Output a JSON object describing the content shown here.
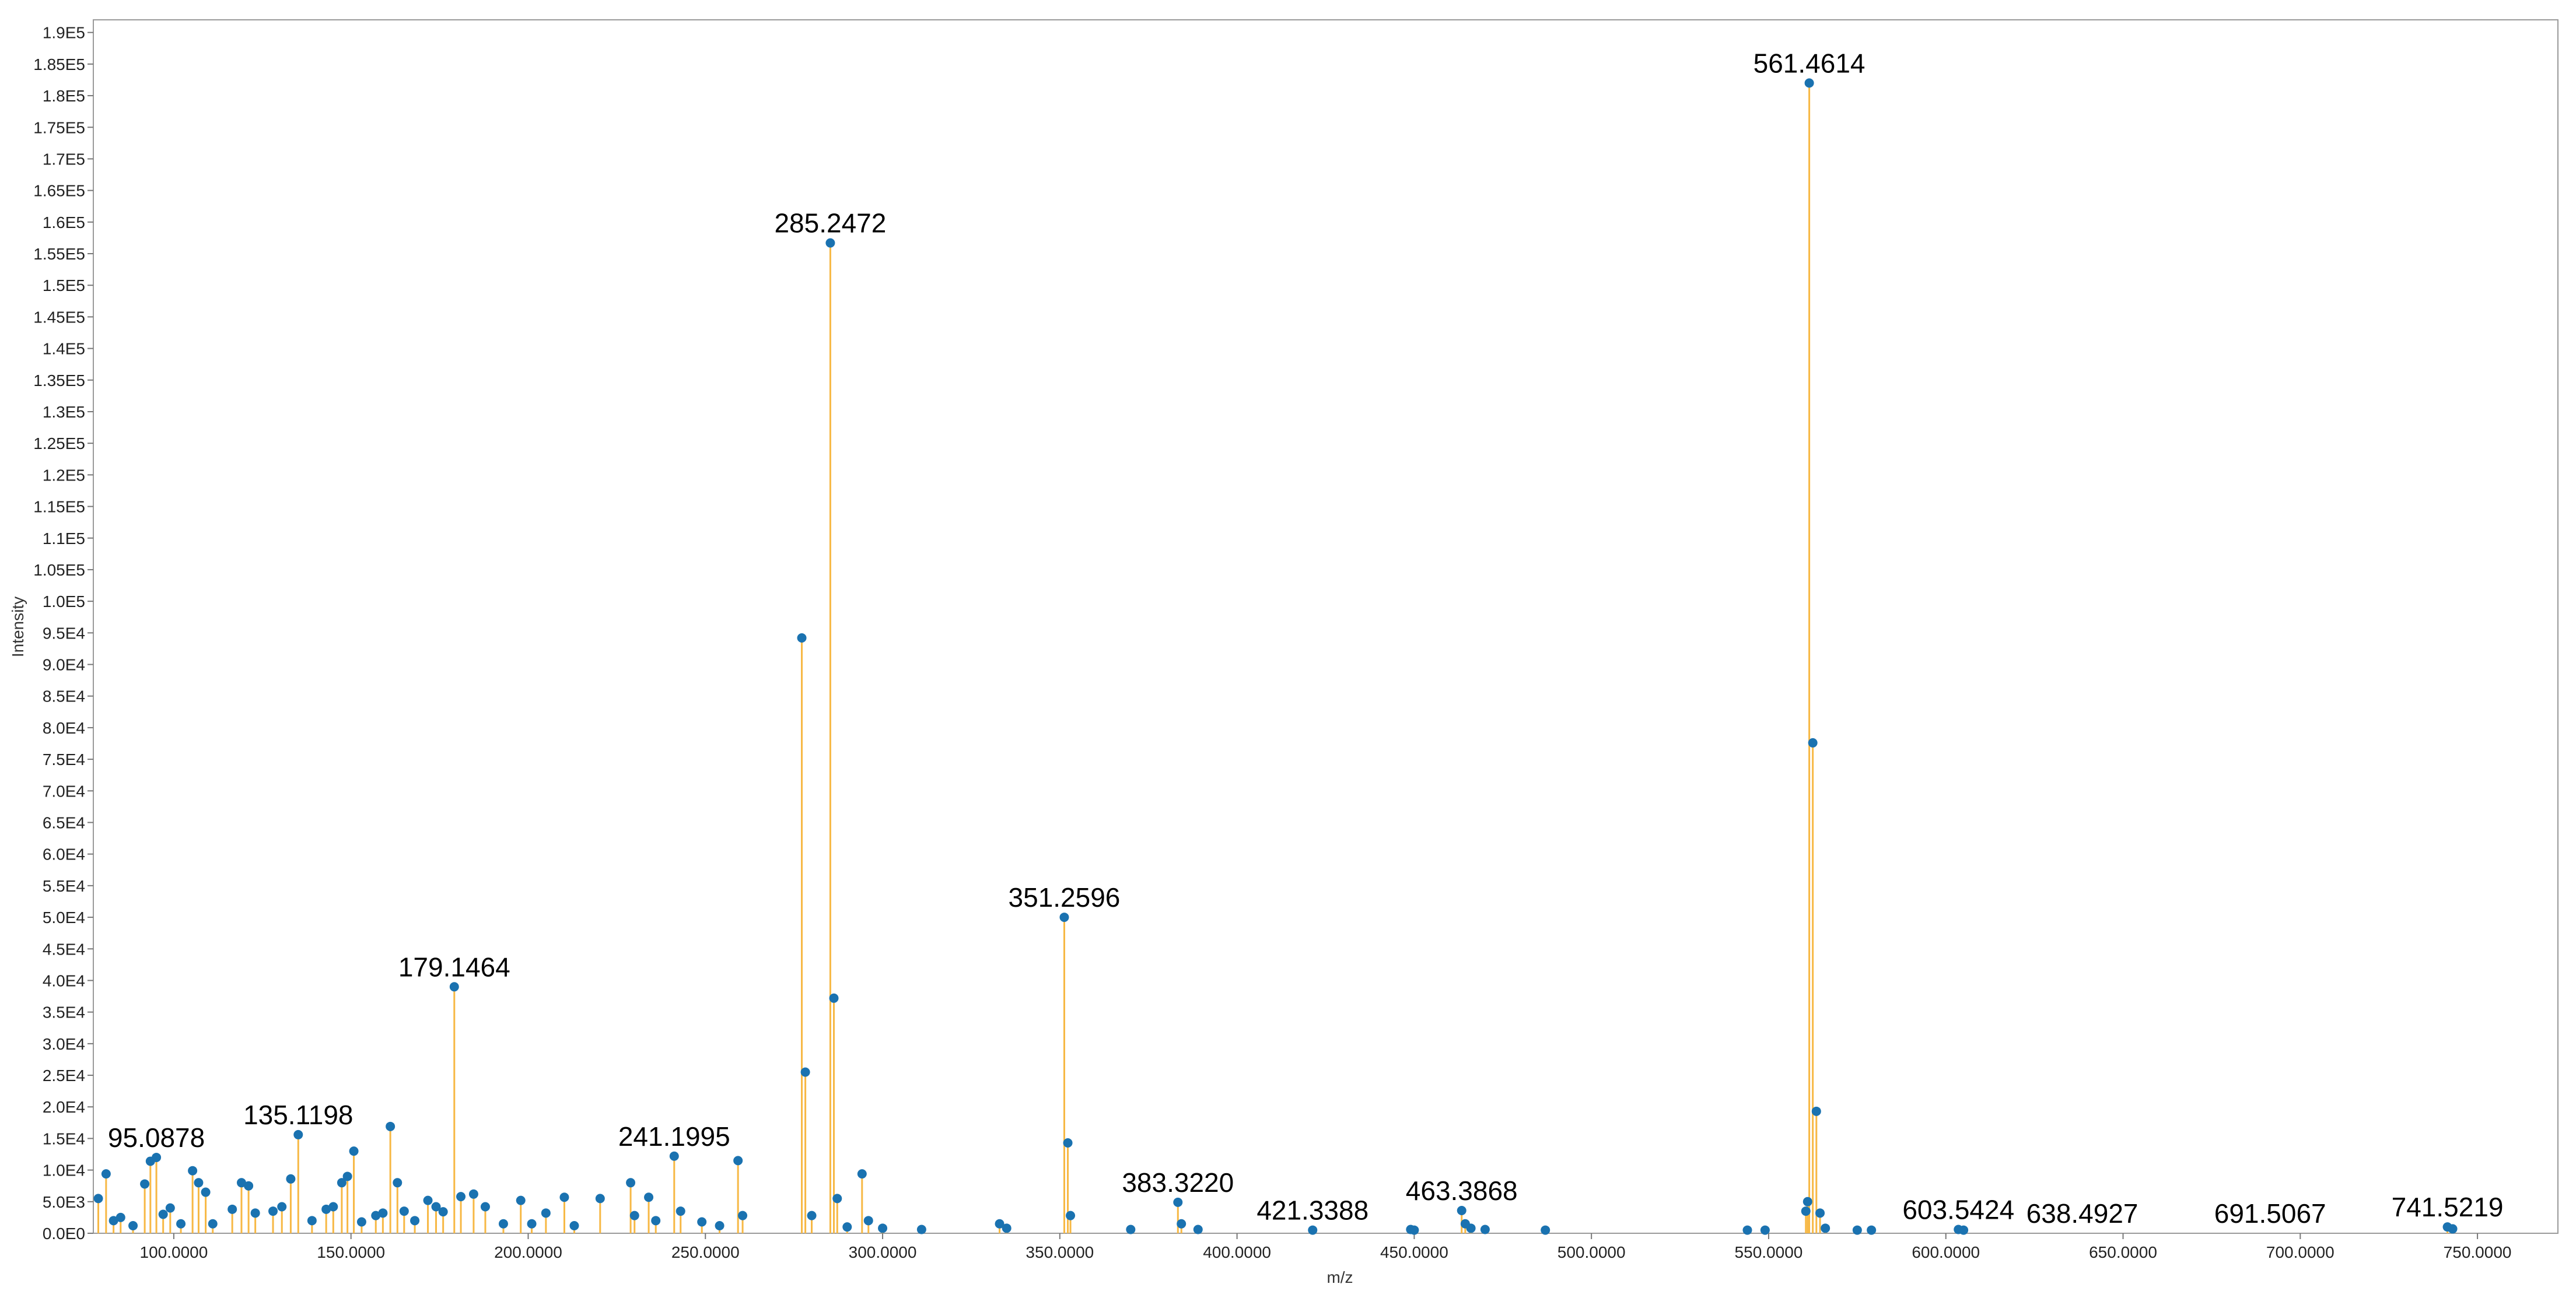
{
  "chart_data": {
    "type": "stem",
    "xlabel": "m/z",
    "ylabel": "Intensity",
    "line_color": "#f7b844",
    "marker_color": "#1a72b0",
    "xlim": [
      77.3,
      772.7
    ],
    "ylim": [
      0,
      192000
    ],
    "xticks": [
      {
        "value": 100,
        "label": "100.0000"
      },
      {
        "value": 150,
        "label": "150.0000"
      },
      {
        "value": 200,
        "label": "200.0000"
      },
      {
        "value": 250,
        "label": "250.0000"
      },
      {
        "value": 300,
        "label": "300.0000"
      },
      {
        "value": 350,
        "label": "350.0000"
      },
      {
        "value": 400,
        "label": "400.0000"
      },
      {
        "value": 450,
        "label": "450.0000"
      },
      {
        "value": 500,
        "label": "500.0000"
      },
      {
        "value": 550,
        "label": "550.0000"
      },
      {
        "value": 600,
        "label": "600.0000"
      },
      {
        "value": 650,
        "label": "650.0000"
      },
      {
        "value": 700,
        "label": "700.0000"
      },
      {
        "value": 750,
        "label": "750.0000"
      }
    ],
    "yticks": [
      {
        "value": 0,
        "label": "0.0E0"
      },
      {
        "value": 5000,
        "label": "5.0E3"
      },
      {
        "value": 10000,
        "label": "1.0E4"
      },
      {
        "value": 15000,
        "label": "1.5E4"
      },
      {
        "value": 20000,
        "label": "2.0E4"
      },
      {
        "value": 25000,
        "label": "2.5E4"
      },
      {
        "value": 30000,
        "label": "3.0E4"
      },
      {
        "value": 35000,
        "label": "3.5E4"
      },
      {
        "value": 40000,
        "label": "4.0E4"
      },
      {
        "value": 45000,
        "label": "4.5E4"
      },
      {
        "value": 50000,
        "label": "5.0E4"
      },
      {
        "value": 55000,
        "label": "5.5E4"
      },
      {
        "value": 60000,
        "label": "6.0E4"
      },
      {
        "value": 65000,
        "label": "6.5E4"
      },
      {
        "value": 70000,
        "label": "7.0E4"
      },
      {
        "value": 75000,
        "label": "7.5E4"
      },
      {
        "value": 80000,
        "label": "8.0E4"
      },
      {
        "value": 85000,
        "label": "8.5E4"
      },
      {
        "value": 90000,
        "label": "9.0E4"
      },
      {
        "value": 95000,
        "label": "9.5E4"
      },
      {
        "value": 100000,
        "label": "1.0E5"
      },
      {
        "value": 105000,
        "label": "1.05E5"
      },
      {
        "value": 110000,
        "label": "1.1E5"
      },
      {
        "value": 115000,
        "label": "1.15E5"
      },
      {
        "value": 120000,
        "label": "1.2E5"
      },
      {
        "value": 125000,
        "label": "1.25E5"
      },
      {
        "value": 130000,
        "label": "1.3E5"
      },
      {
        "value": 135000,
        "label": "1.35E5"
      },
      {
        "value": 140000,
        "label": "1.4E5"
      },
      {
        "value": 145000,
        "label": "1.45E5"
      },
      {
        "value": 150000,
        "label": "1.5E5"
      },
      {
        "value": 155000,
        "label": "1.55E5"
      },
      {
        "value": 160000,
        "label": "1.6E5"
      },
      {
        "value": 165000,
        "label": "1.65E5"
      },
      {
        "value": 170000,
        "label": "1.7E5"
      },
      {
        "value": 175000,
        "label": "1.75E5"
      },
      {
        "value": 180000,
        "label": "1.8E5"
      },
      {
        "value": 185000,
        "label": "1.85E5"
      },
      {
        "value": 190000,
        "label": "1.9E5"
      }
    ],
    "x": [
      78.7,
      80.9,
      83.0,
      85.0,
      88.5,
      91.8,
      93.4,
      95.0878,
      97.0,
      99.0,
      102.0,
      105.3,
      107.0,
      109.0,
      111.0,
      116.5,
      119.1,
      121.1,
      123.0,
      128.0,
      130.5,
      133.0,
      135.1198,
      139.0,
      143.0,
      145.0,
      147.4,
      149.0,
      150.8,
      153.0,
      157.0,
      159.0,
      161.1,
      163.1,
      165.0,
      168.0,
      171.7,
      174.0,
      176.0,
      179.1464,
      181.0,
      184.6,
      187.9,
      193.0,
      197.9,
      201.0,
      205.0,
      210.2,
      213.0,
      220.3,
      228.9,
      230.0,
      234.0,
      236.0,
      241.1995,
      243.0,
      249.0,
      254.0,
      259.2,
      260.5,
      277.2,
      278.2,
      280.0,
      285.2472,
      286.25,
      287.2,
      290.0,
      294.2,
      296.0,
      300.0,
      311.0,
      333.0,
      335.0,
      351.2596,
      352.26,
      353.0,
      370.0,
      383.322,
      384.3,
      389.0,
      421.3388,
      449.0,
      450.0,
      463.3868,
      464.4,
      466.0,
      470.0,
      487.0,
      544.0,
      549.0,
      560.5,
      561.0,
      561.4614,
      562.46,
      563.47,
      564.5,
      566.0,
      575.0,
      579.0,
      603.5424,
      605.0,
      741.5219,
      743.0
    ],
    "values": [
      5500,
      9400,
      2000,
      2500,
      1200,
      7800,
      11400,
      12000,
      3000,
      4000,
      1500,
      9900,
      8000,
      6500,
      1500,
      3800,
      8000,
      7500,
      3200,
      3500,
      4200,
      8600,
      15600,
      2000,
      3800,
      4200,
      8000,
      9000,
      13000,
      1800,
      2800,
      3200,
      16900,
      8000,
      3500,
      2000,
      5200,
      4200,
      3400,
      39000,
      5800,
      6200,
      4200,
      1500,
      5200,
      1500,
      3200,
      5700,
      1200,
      5500,
      8000,
      2800,
      5700,
      2000,
      12200,
      3500,
      1800,
      1200,
      11500,
      2800,
      94200,
      25500,
      2800,
      156700,
      37200,
      5500,
      1000,
      9400,
      2000,
      800,
      600,
      1500,
      800,
      50000,
      14300,
      2800,
      600,
      4900,
      1500,
      600,
      500,
      600,
      500,
      3600,
      1500,
      800,
      600,
      500,
      500,
      500,
      3500,
      5000,
      182000,
      77600,
      19300,
      3200,
      800,
      500,
      500,
      600,
      500,
      1000,
      700
    ],
    "annotations": [
      {
        "text": "95.0878",
        "x": 95.0878,
        "y": 12000
      },
      {
        "text": "135.1198",
        "x": 135.1198,
        "y": 15600
      },
      {
        "text": "179.1464",
        "x": 179.1464,
        "y": 39000
      },
      {
        "text": "241.1995",
        "x": 241.1995,
        "y": 12200
      },
      {
        "text": "285.2472",
        "x": 285.2472,
        "y": 156700
      },
      {
        "text": "351.2596",
        "x": 351.2596,
        "y": 50000
      },
      {
        "text": "383.3220",
        "x": 383.322,
        "y": 4900
      },
      {
        "text": "421.3388",
        "x": 421.3388,
        "y": 500
      },
      {
        "text": "463.3868",
        "x": 463.3868,
        "y": 3600
      },
      {
        "text": "561.4614",
        "x": 561.4614,
        "y": 182000
      },
      {
        "text": "603.5424",
        "x": 603.5424,
        "y": 600
      },
      {
        "text": "638.4927",
        "x": 638.4927,
        "y": 0
      },
      {
        "text": "691.5067",
        "x": 691.5067,
        "y": 0
      },
      {
        "text": "741.5219",
        "x": 741.5219,
        "y": 1000
      }
    ]
  }
}
